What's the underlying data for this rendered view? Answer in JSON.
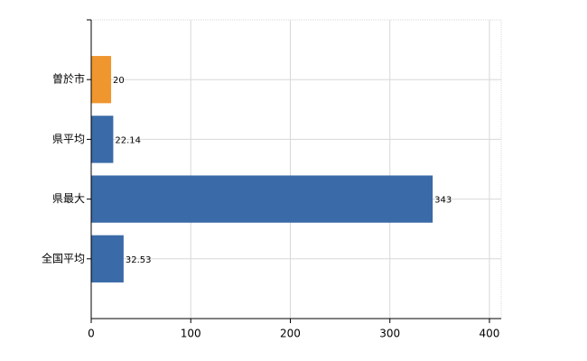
{
  "chart_data": {
    "type": "bar",
    "orientation": "horizontal",
    "categories": [
      "曽於市",
      "県平均",
      "県最大",
      "全国平均"
    ],
    "values": [
      20,
      22.14,
      343,
      32.53
    ],
    "colors": [
      "#f0962e",
      "#3a6aa8",
      "#3a6aa8",
      "#3a6aa8"
    ],
    "xlim": [
      0,
      410
    ],
    "xticks": [
      0,
      100,
      200,
      300,
      400
    ],
    "grid": true,
    "data_labels": true
  }
}
